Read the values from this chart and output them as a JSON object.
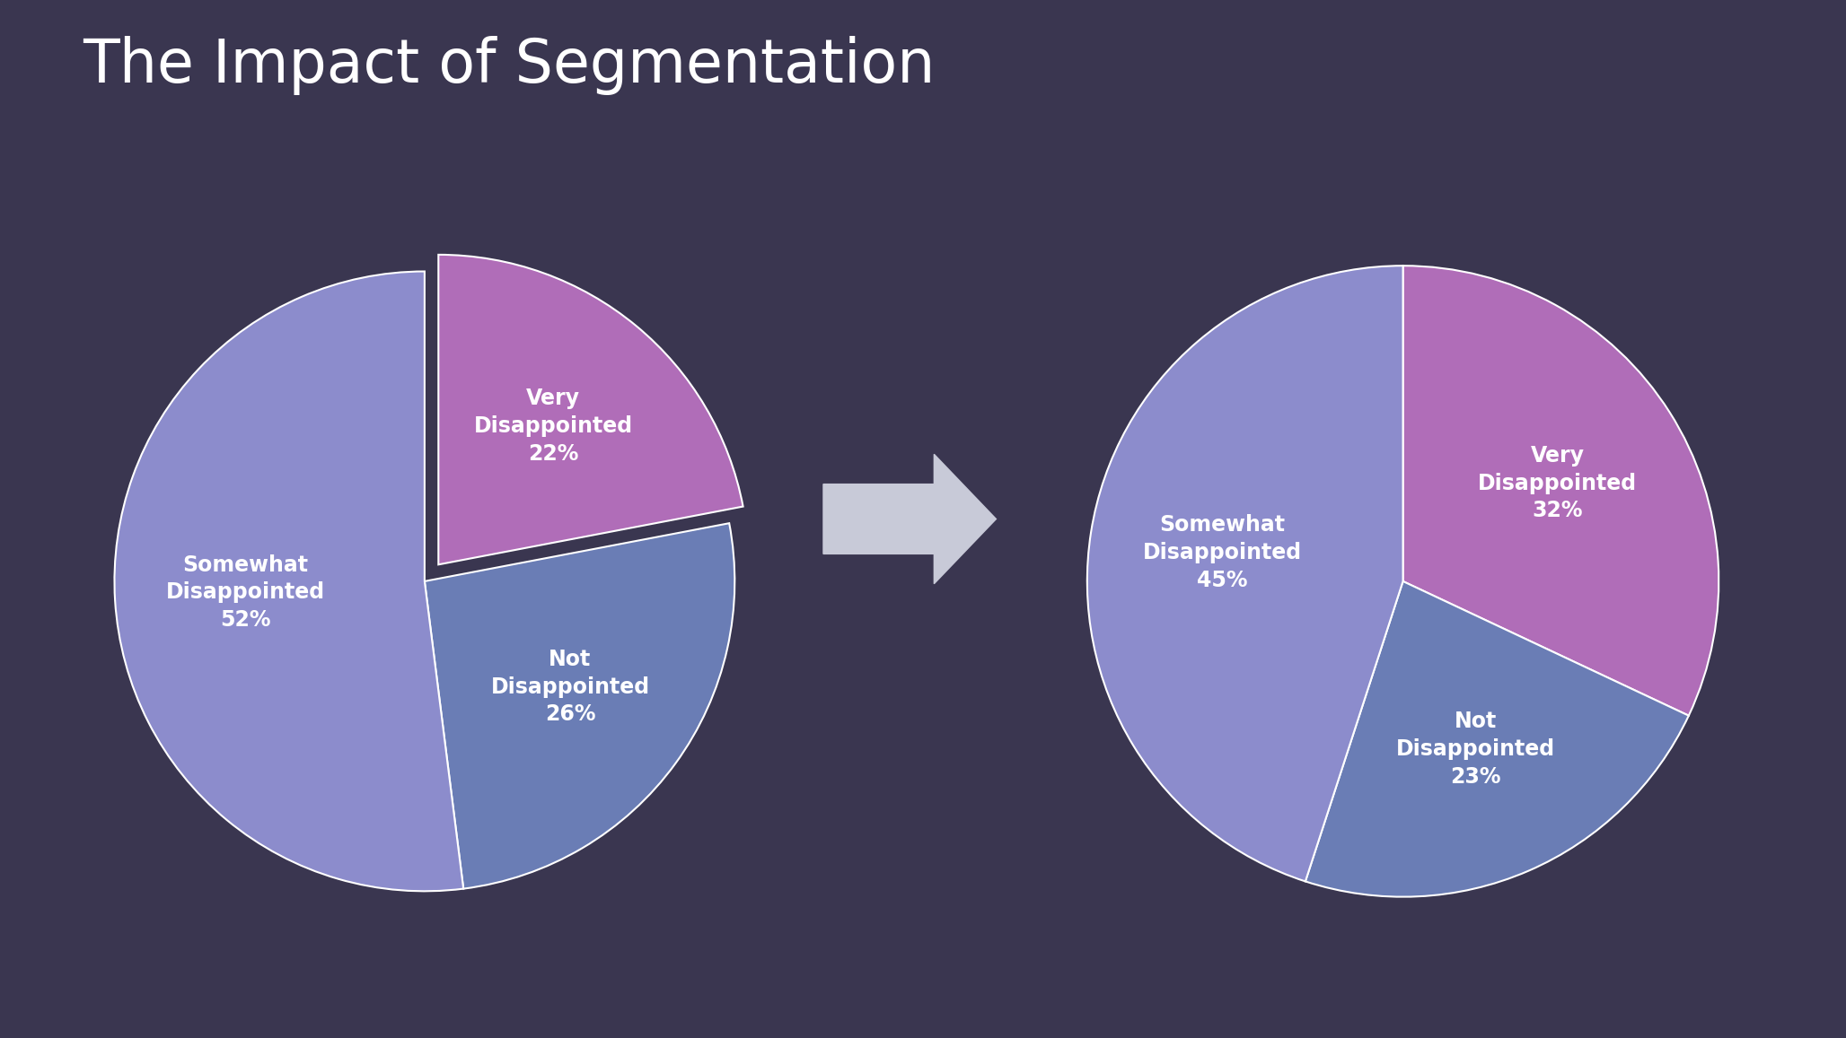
{
  "title": "The Impact of Segmentation",
  "title_fontsize": 48,
  "title_color": "#ffffff",
  "background_color": "#3a3650",
  "pie1": {
    "labels": [
      "Very\nDisappointed\n22%",
      "Not\nDisappointed\n26%",
      "Somewhat\nDisappointed\n52%"
    ],
    "values": [
      22,
      26,
      52
    ],
    "colors": [
      "#b06db8",
      "#6a7db5",
      "#8c8ccc"
    ],
    "explode": [
      0.07,
      0.0,
      0.0
    ],
    "startangle": 90,
    "label_fontsize": 17
  },
  "pie2": {
    "labels": [
      "Very\nDisappointed\n32%",
      "Not\nDisappointed\n23%",
      "Somewhat\nDisappointed\n45%"
    ],
    "values": [
      32,
      23,
      45
    ],
    "colors": [
      "#b06db8",
      "#6a7db5",
      "#8c8ccc"
    ],
    "explode": [
      0.0,
      0.0,
      0.0
    ],
    "startangle": 90,
    "label_fontsize": 17
  },
  "wedge_linewidth": 1.5,
  "wedge_linecolor": "#ffffff",
  "arrow_color": "#c8cad8"
}
